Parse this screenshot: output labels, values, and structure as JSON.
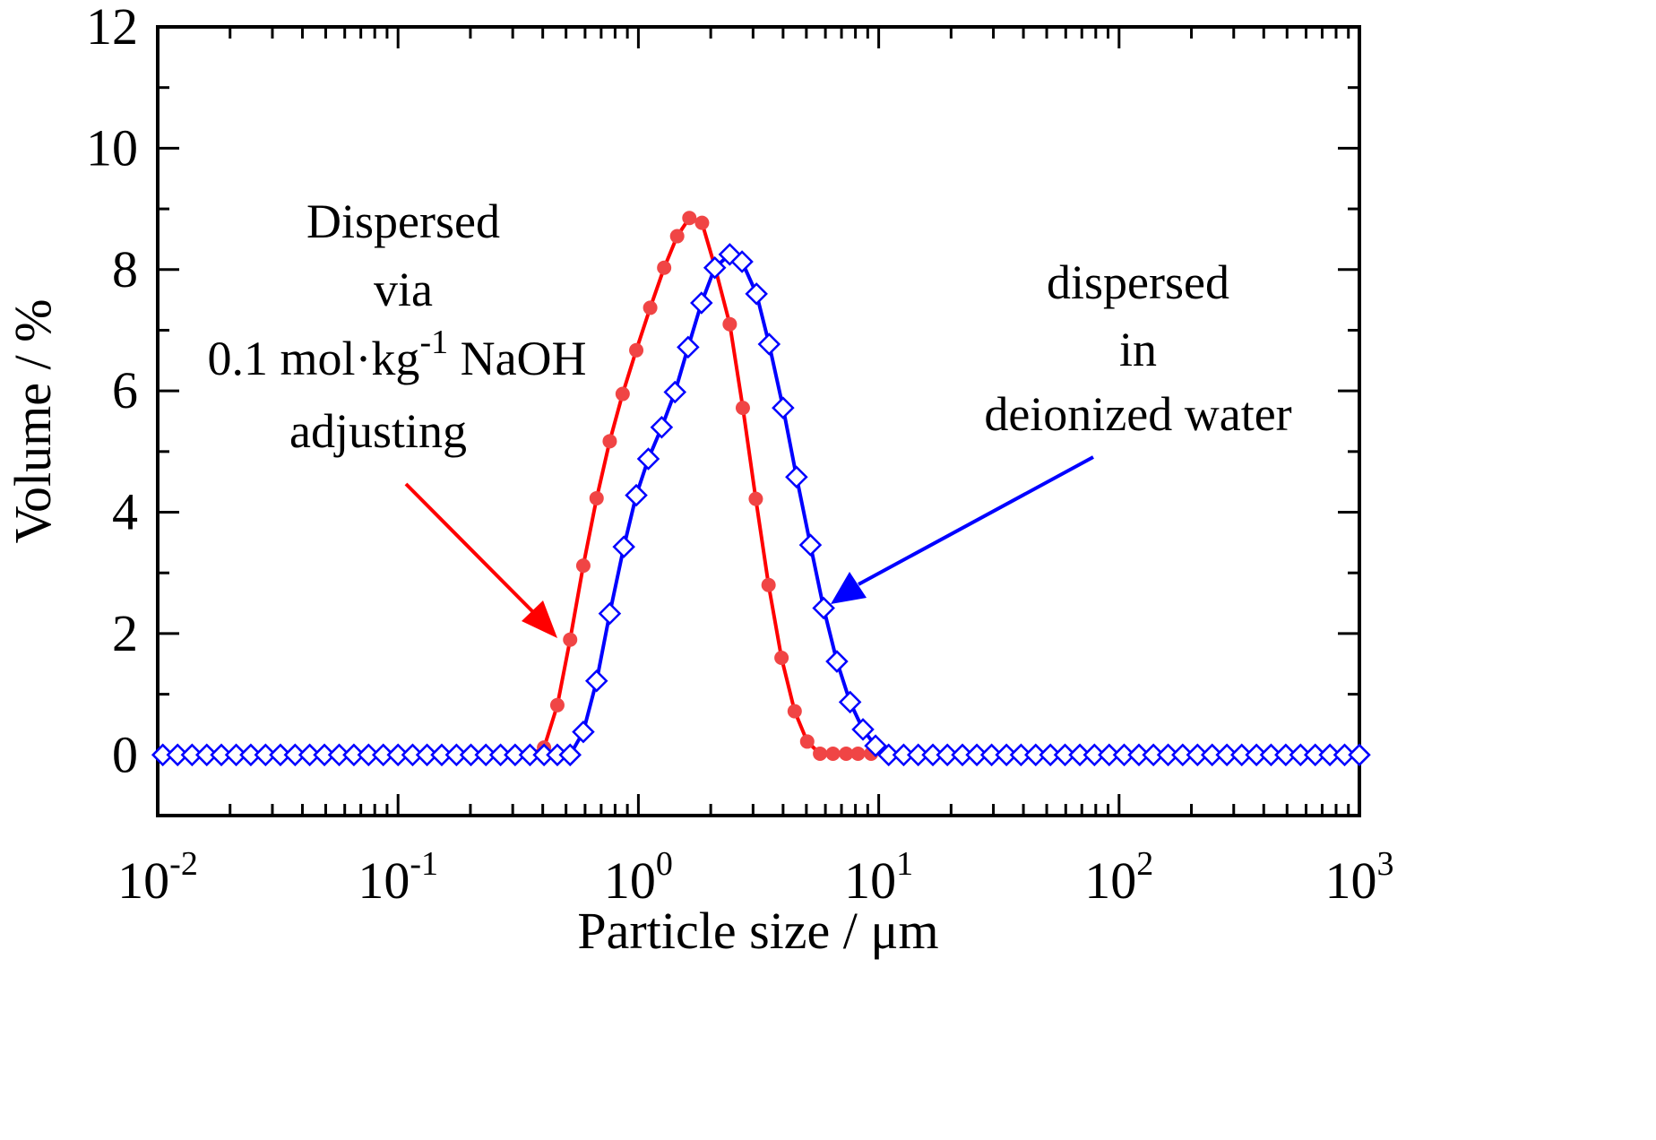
{
  "chart_data": {
    "type": "line",
    "xscale": "log",
    "xlabel": "Particle size  / μm",
    "ylabel": "Volume / %",
    "xlim": [
      0.01,
      1000
    ],
    "ylim": [
      -1,
      12
    ],
    "yticks": [
      0,
      2,
      4,
      6,
      8,
      10,
      12
    ],
    "xtick_labels": [
      {
        "base": "10",
        "exp": "-2"
      },
      {
        "base": "10",
        "exp": "-1"
      },
      {
        "base": "10",
        "exp": "0"
      },
      {
        "base": "10",
        "exp": "1"
      },
      {
        "base": "10",
        "exp": "2"
      },
      {
        "base": "10",
        "exp": "3"
      }
    ],
    "grid": false,
    "colors": {
      "naoh": "#ff0000",
      "naoh_marker": "#f04545",
      "water": "#0000ff"
    },
    "series": [
      {
        "name": "Dispersed via 0.1 mol·kg-1 NaOH adjusting",
        "marker": "circle",
        "x": [
          0.0105,
          0.0121,
          0.0139,
          0.016,
          0.0184,
          0.0212,
          0.0244,
          0.0281,
          0.0324,
          0.0373,
          0.0429,
          0.0494,
          0.0569,
          0.0655,
          0.0754,
          0.0868,
          0.1,
          0.115,
          0.132,
          0.152,
          0.175,
          0.201,
          0.232,
          0.267,
          0.307,
          0.354,
          0.405,
          0.46,
          0.52,
          0.59,
          0.67,
          0.76,
          0.86,
          0.98,
          1.12,
          1.28,
          1.45,
          1.63,
          1.84,
          2.08,
          2.4,
          2.72,
          3.08,
          3.48,
          3.94,
          4.47,
          5.04,
          5.7,
          6.45,
          7.32,
          8.2,
          9.3
        ],
        "values": [
          0,
          0,
          0,
          0,
          0,
          0,
          0,
          0,
          0,
          0,
          0,
          0,
          0,
          0,
          0,
          0,
          0,
          0,
          0,
          0,
          0,
          0,
          0,
          0,
          0,
          0,
          0.12,
          0.82,
          1.9,
          3.12,
          4.23,
          5.17,
          5.95,
          6.67,
          7.37,
          8.03,
          8.55,
          8.85,
          8.77,
          8.05,
          7.1,
          5.72,
          4.22,
          2.8,
          1.6,
          0.72,
          0.22,
          0.02,
          0.02,
          0.02,
          0.02,
          0.02
        ]
      },
      {
        "name": "dispersed in deionized water",
        "marker": "diamond",
        "x": [
          0.0105,
          0.0121,
          0.0139,
          0.016,
          0.0184,
          0.0212,
          0.0244,
          0.0281,
          0.0324,
          0.0373,
          0.0429,
          0.0494,
          0.0569,
          0.0655,
          0.0754,
          0.0868,
          0.1,
          0.115,
          0.132,
          0.152,
          0.175,
          0.201,
          0.232,
          0.267,
          0.307,
          0.354,
          0.405,
          0.46,
          0.52,
          0.59,
          0.67,
          0.76,
          0.87,
          0.98,
          1.1,
          1.25,
          1.42,
          1.61,
          1.83,
          2.08,
          2.4,
          2.7,
          3.1,
          3.5,
          4.0,
          4.55,
          5.2,
          5.9,
          6.7,
          7.6,
          8.6,
          9.7,
          11,
          12.7,
          14.6,
          16.8,
          19.3,
          22.3,
          25.6,
          29.5,
          34,
          39.1,
          45,
          51.8,
          59.6,
          68.7,
          79,
          91,
          105,
          121,
          139,
          160,
          184,
          212,
          244,
          281,
          324,
          373,
          429,
          494,
          569,
          655,
          754,
          868,
          1000
        ],
        "values": [
          0,
          0,
          0,
          0,
          0,
          0,
          0,
          0,
          0,
          0,
          0,
          0,
          0,
          0,
          0,
          0,
          0,
          0,
          0,
          0,
          0,
          0,
          0,
          0,
          0,
          0,
          0,
          0,
          0,
          0.38,
          1.22,
          2.33,
          3.43,
          4.28,
          4.88,
          5.4,
          5.98,
          6.72,
          7.45,
          8.03,
          8.25,
          8.13,
          7.6,
          6.77,
          5.72,
          4.58,
          3.46,
          2.42,
          1.54,
          0.87,
          0.42,
          0.15,
          0,
          0,
          0,
          0,
          0,
          0,
          0,
          0,
          0,
          0,
          0,
          0,
          0,
          0,
          0,
          0,
          0,
          0,
          0,
          0,
          0,
          0,
          0,
          0,
          0,
          0,
          0,
          0,
          0,
          0,
          0,
          0,
          0
        ]
      }
    ],
    "annotations": {
      "naoh": {
        "lines": [
          "Dispersed",
          "via"
        ],
        "formula": {
          "prefix": "0.1 mol·kg",
          "sup": "-1",
          "suffix": " NaOH"
        },
        "last": "adjusting"
      },
      "water": {
        "lines": [
          "dispersed",
          "in",
          "deionized water"
        ]
      }
    }
  }
}
